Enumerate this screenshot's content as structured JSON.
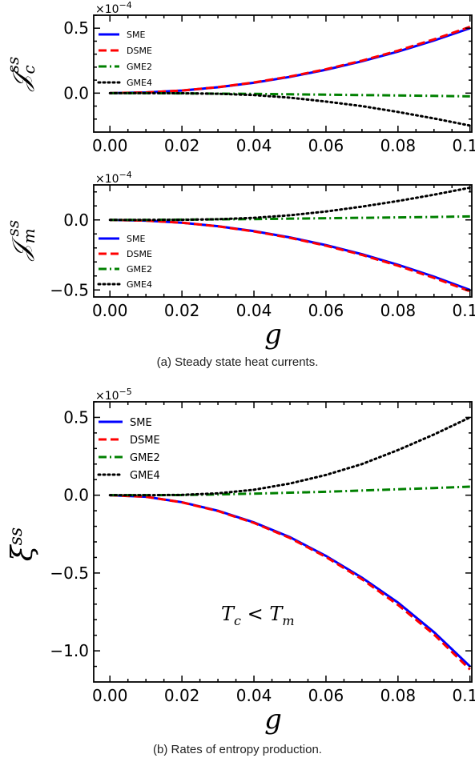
{
  "captions": {
    "a": "(a) Steady state heat currents.",
    "b": "(b) Rates of entropy production."
  },
  "chart_data": [
    {
      "type": "line",
      "ylabel_main": "𝒥",
      "ylabel_sub": "c",
      "ylabel_sup": "ss",
      "xlabel": "",
      "scale_label_base": "×10",
      "scale_label_exp": "−4",
      "xlim": [
        -0.0045,
        0.1005
      ],
      "ylim": [
        -0.3,
        0.6
      ],
      "xticks": [
        0.0,
        0.02,
        0.04,
        0.06,
        0.08,
        0.1
      ],
      "xtick_labels": [
        "0.00",
        "0.02",
        "0.04",
        "0.06",
        "0.08",
        "0.10"
      ],
      "yticks": [
        0.0,
        0.5
      ],
      "ytick_labels": [
        "0.0",
        "0.5"
      ],
      "legend_position": "top-left",
      "series": [
        {
          "name": "SME",
          "color": "#0000ff",
          "style": "solid",
          "x": [
            0,
            0.01,
            0.02,
            0.03,
            0.04,
            0.05,
            0.06,
            0.07,
            0.08,
            0.09,
            0.1
          ],
          "y": [
            0,
            0.005,
            0.02,
            0.045,
            0.08,
            0.125,
            0.18,
            0.245,
            0.32,
            0.405,
            0.5
          ]
        },
        {
          "name": "DSME",
          "color": "#ff0000",
          "style": "dashed",
          "x": [
            0,
            0.01,
            0.02,
            0.03,
            0.04,
            0.05,
            0.06,
            0.07,
            0.08,
            0.09,
            0.1
          ],
          "y": [
            0,
            0.005,
            0.02,
            0.046,
            0.082,
            0.128,
            0.184,
            0.25,
            0.327,
            0.414,
            0.51
          ]
        },
        {
          "name": "GME2",
          "color": "#008000",
          "style": "dashdot",
          "x": [
            0,
            0.01,
            0.02,
            0.03,
            0.04,
            0.05,
            0.06,
            0.07,
            0.08,
            0.09,
            0.1
          ],
          "y": [
            0,
            0,
            -0.002,
            -0.004,
            -0.006,
            -0.009,
            -0.012,
            -0.015,
            -0.018,
            -0.021,
            -0.025
          ]
        },
        {
          "name": "GME4",
          "color": "#000000",
          "style": "dotted",
          "x": [
            0,
            0.01,
            0.02,
            0.03,
            0.04,
            0.05,
            0.06,
            0.07,
            0.08,
            0.09,
            0.1
          ],
          "y": [
            0,
            0,
            -0.001,
            -0.005,
            -0.015,
            -0.035,
            -0.065,
            -0.1,
            -0.145,
            -0.195,
            -0.25
          ]
        }
      ]
    },
    {
      "type": "line",
      "ylabel_main": "𝒥",
      "ylabel_sub": "m",
      "ylabel_sup": "ss",
      "xlabel": "g",
      "scale_label_base": "×10",
      "scale_label_exp": "−4",
      "xlim": [
        -0.0045,
        0.1005
      ],
      "ylim": [
        -0.55,
        0.25
      ],
      "xticks": [
        0.0,
        0.02,
        0.04,
        0.06,
        0.08,
        0.1
      ],
      "xtick_labels": [
        "0.00",
        "0.02",
        "0.04",
        "0.06",
        "0.08",
        "0.10"
      ],
      "yticks": [
        -0.5,
        0.0
      ],
      "ytick_labels": [
        "−0.5",
        "0.0"
      ],
      "legend_position": "bottom-left",
      "series": [
        {
          "name": "SME",
          "color": "#0000ff",
          "style": "solid",
          "x": [
            0,
            0.01,
            0.02,
            0.03,
            0.04,
            0.05,
            0.06,
            0.07,
            0.08,
            0.09,
            0.1
          ],
          "y": [
            0,
            -0.005,
            -0.02,
            -0.045,
            -0.08,
            -0.125,
            -0.18,
            -0.245,
            -0.32,
            -0.405,
            -0.5
          ]
        },
        {
          "name": "DSME",
          "color": "#ff0000",
          "style": "dashed",
          "x": [
            0,
            0.01,
            0.02,
            0.03,
            0.04,
            0.05,
            0.06,
            0.07,
            0.08,
            0.09,
            0.1
          ],
          "y": [
            0,
            -0.005,
            -0.02,
            -0.046,
            -0.082,
            -0.128,
            -0.184,
            -0.25,
            -0.327,
            -0.414,
            -0.51
          ]
        },
        {
          "name": "GME2",
          "color": "#008000",
          "style": "dashdot",
          "x": [
            0,
            0.01,
            0.02,
            0.03,
            0.04,
            0.05,
            0.06,
            0.07,
            0.08,
            0.09,
            0.1
          ],
          "y": [
            0,
            0,
            0.002,
            0.004,
            0.006,
            0.009,
            0.012,
            0.015,
            0.018,
            0.021,
            0.025
          ]
        },
        {
          "name": "GME4",
          "color": "#000000",
          "style": "dotted",
          "x": [
            0,
            0.01,
            0.02,
            0.03,
            0.04,
            0.05,
            0.06,
            0.07,
            0.08,
            0.09,
            0.1
          ],
          "y": [
            0,
            0,
            0.001,
            0.005,
            0.015,
            0.033,
            0.06,
            0.095,
            0.135,
            0.18,
            0.23
          ]
        }
      ]
    },
    {
      "type": "line",
      "ylabel_main": "ξ",
      "ylabel_sub": "",
      "ylabel_sup": "ss",
      "xlabel": "g",
      "scale_label_base": "×10",
      "scale_label_exp": "−5",
      "annotation": {
        "a": "T",
        "a_sub": "c",
        "op": " < ",
        "b": "T",
        "b_sub": "m"
      },
      "xlim": [
        -0.0045,
        0.1005
      ],
      "ylim": [
        -1.2,
        0.6
      ],
      "xticks": [
        0.0,
        0.02,
        0.04,
        0.06,
        0.08,
        0.1
      ],
      "xtick_labels": [
        "0.00",
        "0.02",
        "0.04",
        "0.06",
        "0.08",
        "0.10"
      ],
      "yticks": [
        -1.0,
        -0.5,
        0.0,
        0.5
      ],
      "ytick_labels": [
        "−1.0",
        "−0.5",
        "0.0",
        "0.5"
      ],
      "legend_position": "top-left",
      "series": [
        {
          "name": "SME",
          "color": "#0000ff",
          "style": "solid",
          "x": [
            0,
            0.01,
            0.02,
            0.03,
            0.04,
            0.05,
            0.06,
            0.07,
            0.08,
            0.09,
            0.1
          ],
          "y": [
            0,
            -0.01,
            -0.045,
            -0.1,
            -0.175,
            -0.27,
            -0.39,
            -0.53,
            -0.69,
            -0.88,
            -1.1
          ]
        },
        {
          "name": "DSME",
          "color": "#ff0000",
          "style": "dashed",
          "x": [
            0,
            0.01,
            0.02,
            0.03,
            0.04,
            0.05,
            0.06,
            0.07,
            0.08,
            0.09,
            0.1
          ],
          "y": [
            0,
            -0.01,
            -0.046,
            -0.102,
            -0.178,
            -0.275,
            -0.397,
            -0.54,
            -0.705,
            -0.895,
            -1.12
          ]
        },
        {
          "name": "GME2",
          "color": "#008000",
          "style": "dashdot",
          "x": [
            0,
            0.01,
            0.02,
            0.03,
            0.04,
            0.05,
            0.06,
            0.07,
            0.08,
            0.09,
            0.1
          ],
          "y": [
            0,
            0,
            0.001,
            0.005,
            0.01,
            0.016,
            0.022,
            0.03,
            0.038,
            0.046,
            0.055
          ]
        },
        {
          "name": "GME4",
          "color": "#000000",
          "style": "dotted",
          "x": [
            0,
            0.01,
            0.02,
            0.03,
            0.04,
            0.05,
            0.06,
            0.07,
            0.08,
            0.09,
            0.1
          ],
          "y": [
            0,
            0,
            0.002,
            0.012,
            0.035,
            0.075,
            0.13,
            0.2,
            0.29,
            0.39,
            0.5
          ]
        }
      ]
    }
  ]
}
